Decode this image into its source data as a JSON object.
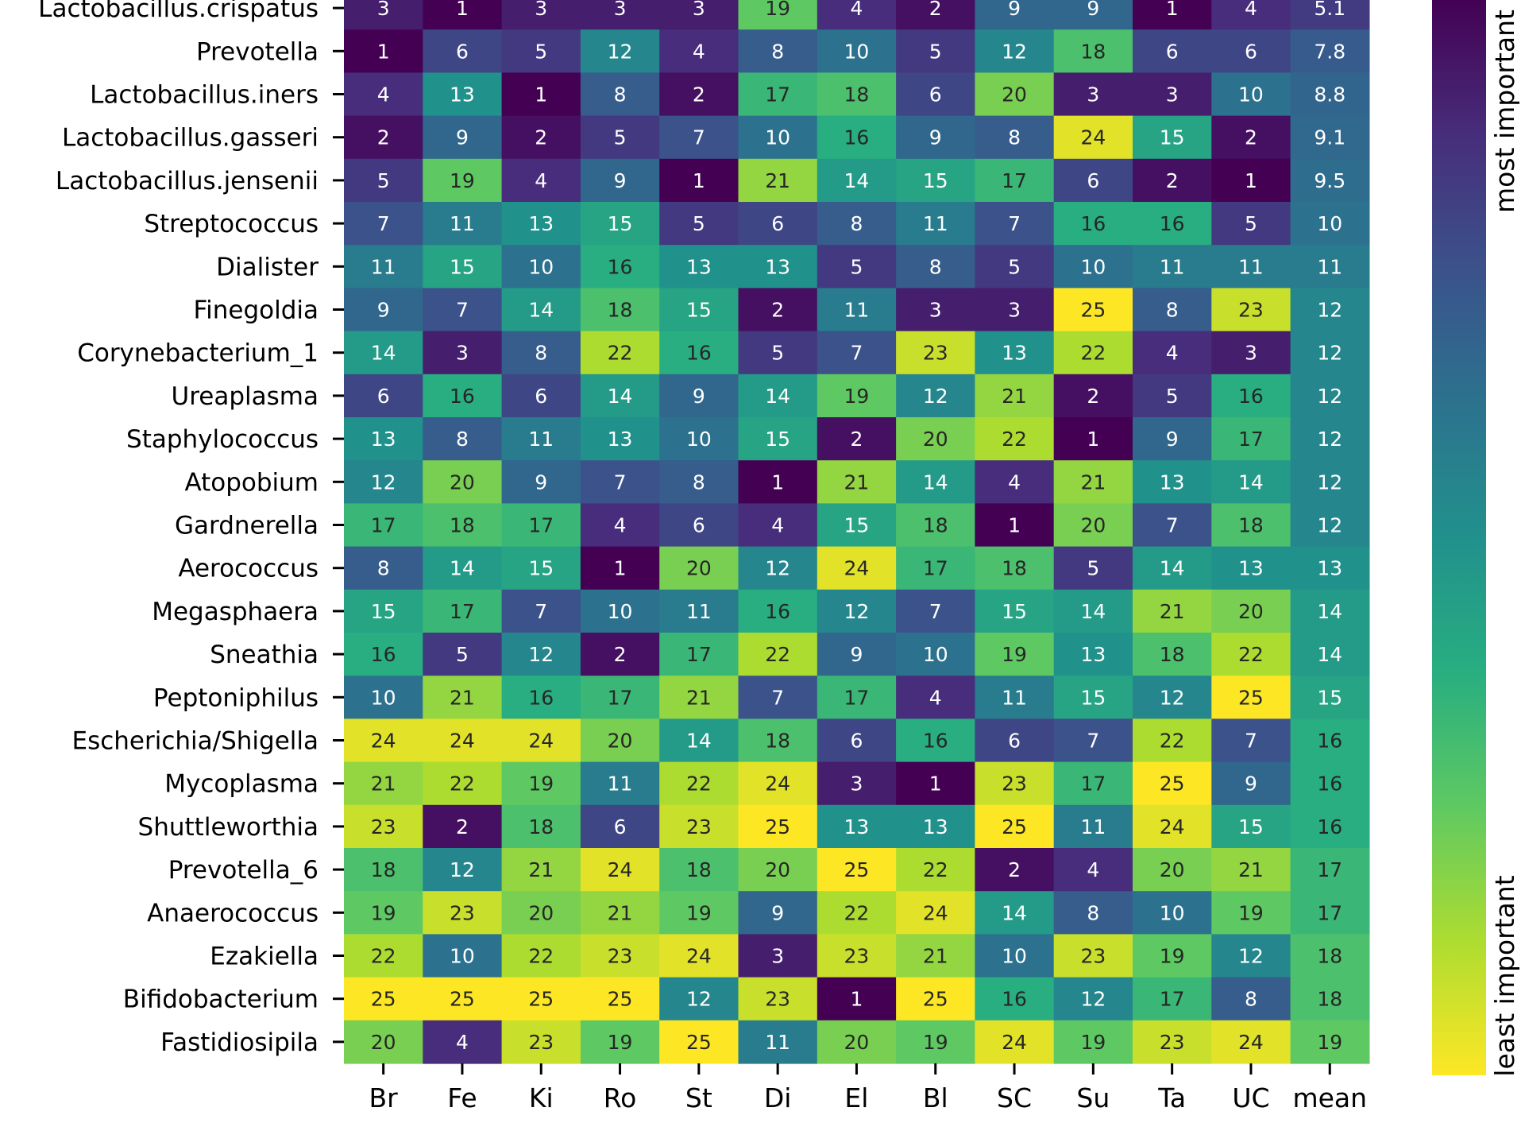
{
  "chart_data": {
    "type": "heatmap",
    "colormap": "viridis (reversed: low = dark purple, high = yellow)",
    "value_range": [
      1,
      25
    ],
    "rows": [
      "Lactobacillus.crispatus",
      "Prevotella",
      "Lactobacillus.iners",
      "Lactobacillus.gasseri",
      "Lactobacillus.jensenii",
      "Streptococcus",
      "Dialister",
      "Finegoldia",
      "Corynebacterium_1",
      "Ureaplasma",
      "Staphylococcus",
      "Atopobium",
      "Gardnerella",
      "Aerococcus",
      "Megasphaera",
      "Sneathia",
      "Peptoniphilus",
      "Escherichia/Shigella",
      "Mycoplasma",
      "Shuttleworthia",
      "Prevotella_6",
      "Anaerococcus",
      "Ezakiella",
      "Bifidobacterium",
      "Fastidiosipila"
    ],
    "columns": [
      "Br",
      "Fe",
      "Ki",
      "Ro",
      "St",
      "Di",
      "El",
      "Bl",
      "SC",
      "Su",
      "Ta",
      "UC",
      "mean"
    ],
    "values": [
      [
        3,
        1,
        3,
        3,
        3,
        19,
        4,
        2,
        9,
        9,
        1,
        4,
        5.1
      ],
      [
        1,
        6,
        5,
        12,
        4,
        8,
        10,
        5,
        12,
        18,
        6,
        6,
        7.8
      ],
      [
        4,
        13,
        1,
        8,
        2,
        17,
        18,
        6,
        20,
        3,
        3,
        10,
        8.8
      ],
      [
        2,
        9,
        2,
        5,
        7,
        10,
        16,
        9,
        8,
        24,
        15,
        2,
        9.1
      ],
      [
        5,
        19,
        4,
        9,
        1,
        21,
        14,
        15,
        17,
        6,
        2,
        1,
        9.5
      ],
      [
        7,
        11,
        13,
        15,
        5,
        6,
        8,
        11,
        7,
        16,
        16,
        5,
        10
      ],
      [
        11,
        15,
        10,
        16,
        13,
        13,
        5,
        8,
        5,
        10,
        11,
        11,
        11
      ],
      [
        9,
        7,
        14,
        18,
        15,
        2,
        11,
        3,
        3,
        25,
        8,
        23,
        12
      ],
      [
        14,
        3,
        8,
        22,
        16,
        5,
        7,
        23,
        13,
        22,
        4,
        3,
        12
      ],
      [
        6,
        16,
        6,
        14,
        9,
        14,
        19,
        12,
        21,
        2,
        5,
        16,
        12
      ],
      [
        13,
        8,
        11,
        13,
        10,
        15,
        2,
        20,
        22,
        1,
        9,
        17,
        12
      ],
      [
        12,
        20,
        9,
        7,
        8,
        1,
        21,
        14,
        4,
        21,
        13,
        14,
        12
      ],
      [
        17,
        18,
        17,
        4,
        6,
        4,
        15,
        18,
        1,
        20,
        7,
        18,
        12
      ],
      [
        8,
        14,
        15,
        1,
        20,
        12,
        24,
        17,
        18,
        5,
        14,
        13,
        13
      ],
      [
        15,
        17,
        7,
        10,
        11,
        16,
        12,
        7,
        15,
        14,
        21,
        20,
        14
      ],
      [
        16,
        5,
        12,
        2,
        17,
        22,
        9,
        10,
        19,
        13,
        18,
        22,
        14
      ],
      [
        10,
        21,
        16,
        17,
        21,
        7,
        17,
        4,
        11,
        15,
        12,
        25,
        15
      ],
      [
        24,
        24,
        24,
        20,
        14,
        18,
        6,
        16,
        6,
        7,
        22,
        7,
        16
      ],
      [
        21,
        22,
        19,
        11,
        22,
        24,
        3,
        1,
        23,
        17,
        25,
        9,
        16
      ],
      [
        23,
        2,
        18,
        6,
        23,
        25,
        13,
        13,
        25,
        11,
        24,
        15,
        16
      ],
      [
        18,
        12,
        21,
        24,
        18,
        20,
        25,
        22,
        2,
        4,
        20,
        21,
        17
      ],
      [
        19,
        23,
        20,
        21,
        19,
        9,
        22,
        24,
        14,
        8,
        10,
        19,
        17
      ],
      [
        22,
        10,
        22,
        23,
        24,
        3,
        23,
        21,
        10,
        23,
        19,
        12,
        18
      ],
      [
        25,
        25,
        25,
        25,
        12,
        23,
        1,
        25,
        16,
        12,
        17,
        8,
        18
      ],
      [
        20,
        4,
        23,
        19,
        25,
        11,
        20,
        19,
        24,
        19,
        23,
        24,
        19
      ]
    ],
    "colorbar": {
      "top_label": "most important",
      "bottom_label": "least important"
    }
  }
}
